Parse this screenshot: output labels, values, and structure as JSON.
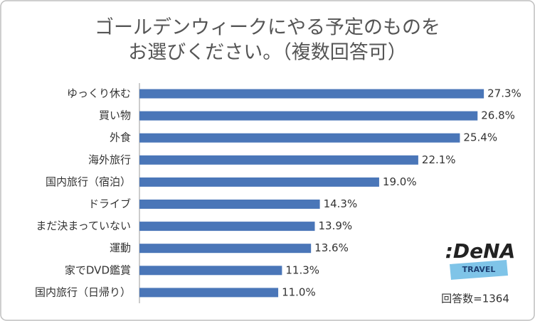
{
  "chart_data": {
    "type": "bar",
    "orientation": "horizontal",
    "title": [
      "ゴールデンウィークにやる予定のものを",
      "お選びください。（複数回答可）"
    ],
    "categories": [
      "ゆっくり休む",
      "買い物",
      "外食",
      "海外旅行",
      "国内旅行（宿泊）",
      "ドライブ",
      "まだ決まっていない",
      "運動",
      "家でDVD鑑賞",
      "国内旅行（日帰り）"
    ],
    "values": [
      27.3,
      26.8,
      25.4,
      22.1,
      19.0,
      14.3,
      13.9,
      13.6,
      11.3,
      11.0
    ],
    "value_labels": [
      "27.3%",
      "26.8%",
      "25.4%",
      "22.1%",
      "19.0%",
      "14.3%",
      "13.9%",
      "13.6%",
      "11.3%",
      "11.0%"
    ],
    "color": "#4a76b8",
    "xlim": [
      0,
      30
    ],
    "note": "回答数=1364"
  },
  "logo": {
    "name": ":DeNA",
    "tagline": "TRAVEL"
  }
}
